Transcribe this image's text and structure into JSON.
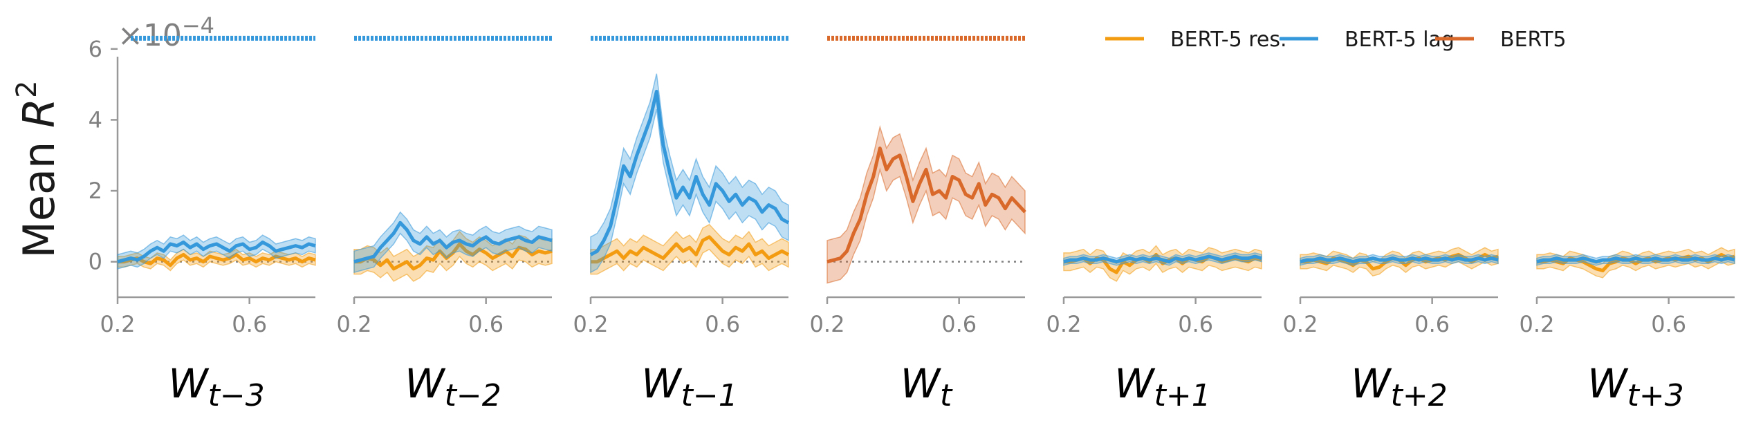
{
  "chart_data": {
    "type": "line",
    "ylabel_prefix": "Mean ",
    "ylabel_var": "R",
    "ylabel_exp": "2",
    "scale_note": "×10",
    "scale_exp": "−4",
    "yticks": [
      "0",
      "2",
      "4",
      "6"
    ],
    "ylim": [
      -1.0,
      6.6
    ],
    "xlim": [
      0.2,
      0.8
    ],
    "xticks": [
      "0.2",
      "0.6"
    ],
    "legend": [
      {
        "name": "BERT-5 res.",
        "color": "#f39c12"
      },
      {
        "name": "BERT-5 lag",
        "color": "#3498db"
      },
      {
        "name": "BERT5",
        "color": "#d9692a"
      }
    ],
    "colors": {
      "res": "#f39c12",
      "lag": "#3498db",
      "bert": "#d9692a",
      "axis": "#999999",
      "zero": "#808080"
    },
    "x": [
      0.2,
      0.22,
      0.24,
      0.26,
      0.28,
      0.3,
      0.32,
      0.34,
      0.36,
      0.38,
      0.4,
      0.42,
      0.44,
      0.46,
      0.48,
      0.5,
      0.52,
      0.54,
      0.56,
      0.58,
      0.6,
      0.62,
      0.64,
      0.66,
      0.68,
      0.7,
      0.72,
      0.74,
      0.76,
      0.78,
      0.8
    ],
    "panels": [
      {
        "label_main": "W",
        "label_sub": "t−3",
        "sig": {
          "series": "lag",
          "start": 0.24,
          "end": 0.8
        },
        "series": [
          {
            "key": "res",
            "values": [
              0.0,
              0.0,
              0.05,
              0.1,
              0.0,
              -0.05,
              0.1,
              0.05,
              -0.1,
              0.1,
              0.2,
              0.05,
              0.1,
              0.0,
              0.15,
              0.1,
              0.05,
              0.1,
              0.2,
              0.05,
              0.1,
              0.0,
              0.1,
              0.05,
              0.15,
              0.1,
              0.05,
              0.1,
              0.0,
              0.1,
              0.05
            ],
            "band": 0.15
          },
          {
            "key": "lag",
            "values": [
              0.0,
              0.05,
              0.1,
              0.05,
              0.15,
              0.3,
              0.4,
              0.3,
              0.5,
              0.45,
              0.55,
              0.4,
              0.5,
              0.35,
              0.45,
              0.5,
              0.4,
              0.3,
              0.45,
              0.5,
              0.35,
              0.4,
              0.55,
              0.45,
              0.3,
              0.35,
              0.4,
              0.45,
              0.4,
              0.5,
              0.45
            ],
            "band": 0.2
          }
        ]
      },
      {
        "label_main": "W",
        "label_sub": "t−2",
        "sig": {
          "series": "lag",
          "start": 0.2,
          "end": 0.8
        },
        "series": [
          {
            "key": "res",
            "values": [
              0.0,
              0.0,
              0.1,
              0.05,
              -0.1,
              0.05,
              -0.2,
              -0.1,
              0.0,
              -0.2,
              -0.1,
              0.1,
              0.05,
              0.3,
              0.1,
              0.25,
              0.5,
              0.3,
              0.2,
              0.35,
              0.25,
              0.1,
              0.2,
              0.3,
              0.15,
              0.4,
              0.35,
              0.2,
              0.3,
              0.25,
              0.3
            ],
            "band": 0.35
          },
          {
            "key": "lag",
            "values": [
              0.0,
              0.05,
              0.1,
              0.15,
              0.4,
              0.6,
              0.8,
              1.1,
              0.9,
              0.6,
              0.5,
              0.7,
              0.5,
              0.6,
              0.4,
              0.55,
              0.6,
              0.5,
              0.45,
              0.6,
              0.7,
              0.55,
              0.5,
              0.6,
              0.65,
              0.7,
              0.6,
              0.55,
              0.7,
              0.65,
              0.6
            ],
            "band": 0.3
          }
        ]
      },
      {
        "label_main": "W",
        "label_sub": "t−1",
        "sig": {
          "series": "lag",
          "start": 0.2,
          "end": 0.8
        },
        "series": [
          {
            "key": "res",
            "values": [
              0.0,
              0.0,
              0.1,
              0.2,
              0.3,
              0.1,
              0.3,
              0.2,
              0.4,
              0.3,
              0.2,
              0.1,
              0.3,
              0.5,
              0.3,
              0.4,
              0.2,
              0.6,
              0.7,
              0.5,
              0.3,
              0.2,
              0.4,
              0.3,
              0.5,
              0.2,
              0.3,
              0.1,
              0.2,
              0.3,
              0.2
            ],
            "band": 0.35
          },
          {
            "key": "lag",
            "values": [
              0.2,
              0.3,
              0.6,
              1.0,
              1.8,
              2.7,
              2.4,
              3.0,
              3.5,
              4.0,
              4.8,
              3.3,
              2.5,
              1.8,
              2.1,
              1.8,
              2.4,
              1.9,
              1.6,
              2.2,
              2.0,
              1.7,
              1.9,
              1.6,
              1.8,
              1.7,
              1.4,
              1.6,
              1.5,
              1.2,
              1.1
            ],
            "band": 0.5
          }
        ]
      },
      {
        "label_main": "W",
        "label_sub": "t",
        "sig": {
          "series": "bert",
          "start": 0.2,
          "end": 0.8
        },
        "series": [
          {
            "key": "bert",
            "values": [
              0.0,
              0.05,
              0.1,
              0.3,
              0.8,
              1.2,
              1.9,
              2.4,
              3.2,
              2.6,
              2.9,
              3.0,
              2.4,
              1.7,
              2.2,
              2.6,
              1.9,
              2.0,
              1.8,
              2.4,
              2.3,
              1.9,
              1.8,
              2.2,
              1.6,
              1.9,
              1.8,
              1.5,
              1.8,
              1.6,
              1.4
            ],
            "band": 0.6
          }
        ]
      },
      {
        "label_main": "W",
        "label_sub": "t+1",
        "series": [
          {
            "key": "res",
            "values": [
              0.0,
              0.0,
              0.05,
              0.1,
              -0.05,
              0.1,
              0.05,
              -0.2,
              -0.3,
              0.0,
              -0.1,
              0.05,
              0.1,
              0.0,
              0.2,
              -0.05,
              0.05,
              0.1,
              -0.05,
              0.1,
              0.05,
              0.0,
              0.15,
              0.1,
              0.0,
              0.05,
              0.1,
              0.05,
              0.0,
              0.1,
              0.05
            ],
            "band": 0.25
          },
          {
            "key": "lag",
            "values": [
              0.0,
              0.05,
              0.05,
              0.1,
              0.05,
              0.05,
              0.1,
              0.05,
              0.0,
              0.05,
              0.1,
              0.05,
              0.1,
              0.05,
              0.1,
              0.05,
              0.0,
              0.1,
              0.05,
              0.1,
              0.05,
              0.1,
              0.15,
              0.1,
              0.05,
              0.1,
              0.15,
              0.1,
              0.1,
              0.15,
              0.1
            ],
            "band": 0.1
          }
        ]
      },
      {
        "label_main": "W",
        "label_sub": "t+2",
        "series": [
          {
            "key": "res",
            "values": [
              0.0,
              0.0,
              0.05,
              0.0,
              -0.05,
              0.1,
              0.05,
              0.0,
              -0.1,
              0.05,
              0.0,
              -0.2,
              -0.15,
              0.0,
              0.1,
              0.05,
              -0.1,
              0.05,
              0.1,
              0.0,
              0.05,
              0.1,
              0.05,
              0.15,
              0.2,
              0.1,
              0.0,
              0.1,
              0.2,
              0.1,
              0.15
            ],
            "band": 0.2
          },
          {
            "key": "lag",
            "values": [
              0.0,
              0.05,
              0.05,
              0.1,
              0.05,
              0.05,
              0.1,
              0.05,
              0.0,
              0.05,
              0.05,
              0.1,
              0.05,
              0.05,
              0.1,
              0.05,
              0.05,
              0.1,
              0.05,
              0.1,
              0.05,
              0.05,
              0.1,
              0.05,
              0.1,
              0.05,
              0.05,
              0.1,
              0.05,
              0.1,
              0.05
            ],
            "band": 0.1
          }
        ]
      },
      {
        "label_main": "W",
        "label_sub": "t+3",
        "series": [
          {
            "key": "res",
            "values": [
              0.0,
              0.0,
              0.05,
              0.0,
              -0.05,
              0.1,
              0.05,
              0.0,
              -0.1,
              -0.2,
              -0.25,
              -0.05,
              0.0,
              0.1,
              0.05,
              -0.05,
              0.05,
              0.1,
              0.0,
              0.05,
              0.1,
              0.05,
              0.1,
              0.15,
              0.05,
              0.1,
              0.0,
              0.1,
              0.2,
              0.1,
              0.15
            ],
            "band": 0.2
          },
          {
            "key": "lag",
            "values": [
              0.0,
              0.05,
              0.05,
              0.1,
              0.05,
              0.05,
              0.05,
              0.1,
              0.05,
              0.0,
              0.05,
              0.05,
              0.1,
              0.05,
              0.05,
              0.1,
              0.05,
              0.05,
              0.1,
              0.05,
              0.05,
              0.1,
              0.05,
              0.05,
              0.1,
              0.05,
              0.05,
              0.1,
              0.05,
              0.1,
              0.05
            ],
            "band": 0.1
          }
        ]
      }
    ]
  }
}
